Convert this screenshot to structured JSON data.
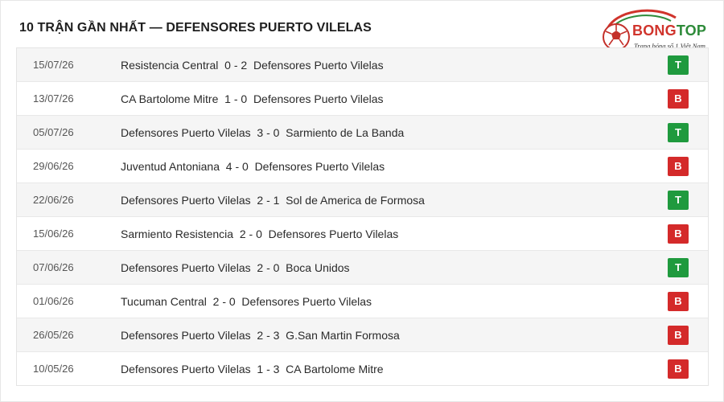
{
  "header": {
    "title": "10 TRẬN GẦN NHẤT — DEFENSORES PUERTO VILELAS"
  },
  "logo": {
    "brand_part1": "BONG",
    "brand_part2": "TOP",
    "tagline": "Trang bóng số 1 Việt Nam",
    "colors": {
      "red": "#d0342c",
      "green": "#2e8b3a"
    }
  },
  "colors": {
    "win": "#1f9a3e",
    "loss": "#d42a2a"
  },
  "matches": [
    {
      "date": "15/07/26",
      "result_text": "Resistencia Central  0 - 2  Defensores Puerto Vilelas",
      "badge": "T",
      "outcome": "win"
    },
    {
      "date": "13/07/26",
      "result_text": "CA Bartolome Mitre  1 - 0  Defensores Puerto Vilelas",
      "badge": "B",
      "outcome": "loss"
    },
    {
      "date": "05/07/26",
      "result_text": "Defensores Puerto Vilelas  3 - 0  Sarmiento de La Banda",
      "badge": "T",
      "outcome": "win"
    },
    {
      "date": "29/06/26",
      "result_text": "Juventud Antoniana  4 - 0  Defensores Puerto Vilelas",
      "badge": "B",
      "outcome": "loss"
    },
    {
      "date": "22/06/26",
      "result_text": "Defensores Puerto Vilelas  2 - 1  Sol de America de Formosa",
      "badge": "T",
      "outcome": "win"
    },
    {
      "date": "15/06/26",
      "result_text": "Sarmiento Resistencia  2 - 0  Defensores Puerto Vilelas",
      "badge": "B",
      "outcome": "loss"
    },
    {
      "date": "07/06/26",
      "result_text": "Defensores Puerto Vilelas  2 - 0  Boca Unidos",
      "badge": "T",
      "outcome": "win"
    },
    {
      "date": "01/06/26",
      "result_text": "Tucuman Central  2 - 0  Defensores Puerto Vilelas",
      "badge": "B",
      "outcome": "loss"
    },
    {
      "date": "26/05/26",
      "result_text": "Defensores Puerto Vilelas  2 - 3  G.San Martin Formosa",
      "badge": "B",
      "outcome": "loss"
    },
    {
      "date": "10/05/26",
      "result_text": "Defensores Puerto Vilelas  1 - 3  CA Bartolome Mitre",
      "badge": "B",
      "outcome": "loss"
    }
  ]
}
